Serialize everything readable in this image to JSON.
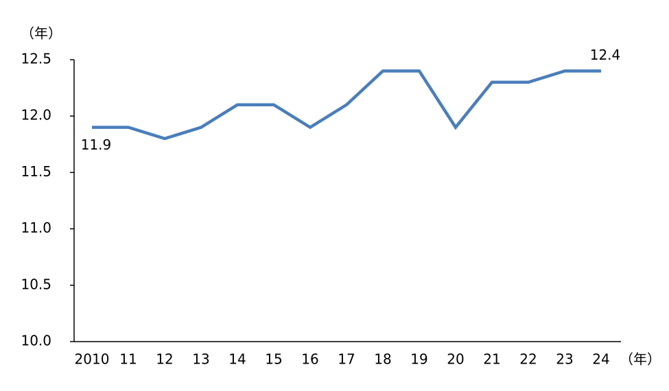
{
  "chart_data": {
    "type": "line",
    "y_unit_label": "（年）",
    "x_unit_label": "（年）",
    "categories": [
      "2010",
      "11",
      "12",
      "13",
      "14",
      "15",
      "16",
      "17",
      "18",
      "19",
      "20",
      "21",
      "22",
      "23",
      "24"
    ],
    "series": [
      {
        "color": "#4a7ebb",
        "values": [
          11.9,
          11.9,
          11.8,
          11.9,
          12.1,
          12.1,
          11.9,
          12.1,
          12.4,
          12.4,
          11.9,
          12.3,
          12.3,
          12.4,
          12.4
        ],
        "value_labels": [
          "11.9",
          null,
          null,
          null,
          null,
          null,
          null,
          null,
          null,
          null,
          null,
          null,
          null,
          null,
          "12.4"
        ]
      }
    ],
    "ylim": [
      10.0,
      12.5
    ],
    "yticks": [
      {
        "value": 10.0,
        "label": "10.0"
      },
      10.5,
      {
        "value": 11.0,
        "label": "11.0"
      },
      11.5,
      {
        "value": 12.0,
        "label": "12.0"
      },
      12.5
    ],
    "grid": false
  }
}
